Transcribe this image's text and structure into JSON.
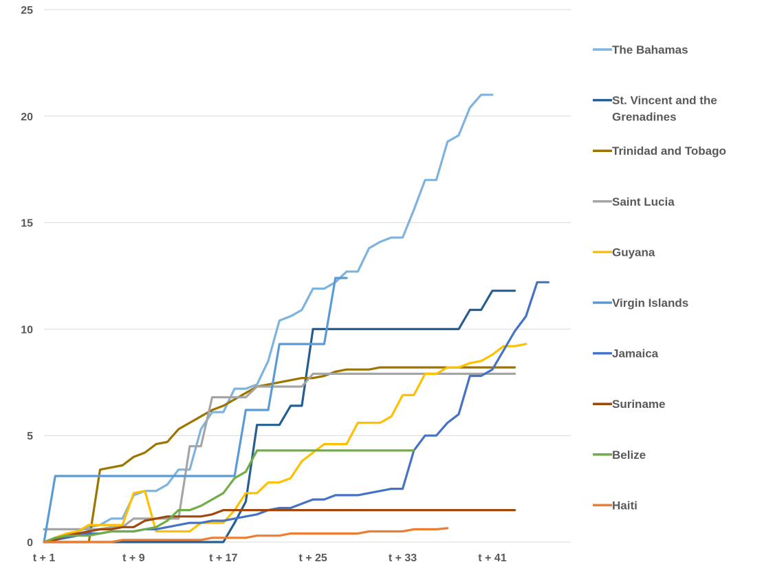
{
  "chart_data": {
    "type": "line",
    "title": "",
    "xlabel": "",
    "ylabel": "",
    "ylim": [
      0,
      25
    ],
    "xlim": [
      1,
      48
    ],
    "y_ticks": [
      "0",
      "5",
      "10",
      "15",
      "20",
      "25"
    ],
    "x_ticks": [
      {
        "x": 1,
        "label": "t + 1"
      },
      {
        "x": 9,
        "label": "t + 9"
      },
      {
        "x": 17,
        "label": "t + 17"
      },
      {
        "x": 25,
        "label": "t + 25"
      },
      {
        "x": 33,
        "label": "t + 33"
      },
      {
        "x": 41,
        "label": "t + 41"
      }
    ],
    "grid": "horizontal",
    "legend_position": "right",
    "series": [
      {
        "name": "The Bahamas",
        "color": "#7EB3DF",
        "x": [
          1,
          2,
          3,
          4,
          5,
          6,
          7,
          8,
          9,
          10,
          11,
          12,
          13,
          14,
          15,
          16,
          17,
          18,
          19,
          20,
          21,
          22,
          23,
          24,
          25,
          26,
          27,
          28,
          29,
          30,
          31,
          32,
          33,
          34,
          35,
          36,
          37,
          38,
          39,
          40,
          41
        ],
        "y": [
          0,
          0.1,
          0.3,
          0.5,
          0.7,
          0.8,
          1.1,
          1.1,
          2.2,
          2.4,
          2.4,
          2.7,
          3.4,
          3.4,
          5.3,
          6.1,
          6.1,
          7.2,
          7.2,
          7.4,
          8.5,
          10.4,
          10.6,
          10.9,
          11.9,
          11.9,
          12.2,
          12.7,
          12.7,
          13.8,
          14.1,
          14.3,
          14.3,
          15.6,
          17.0,
          17.0,
          18.8,
          19.1,
          20.4,
          21.0,
          21.0
        ]
      },
      {
        "name": "St. Vincent and the Grenadines",
        "color": "#255E91",
        "x": [
          1,
          5,
          11,
          16,
          17,
          18,
          19,
          20,
          21,
          22,
          23,
          24,
          25,
          26,
          27,
          28,
          29,
          30,
          31,
          32,
          33,
          34,
          35,
          36,
          37,
          38,
          39,
          40,
          41,
          42,
          43
        ],
        "y": [
          0,
          0,
          0,
          0,
          0,
          0.9,
          1.9,
          5.5,
          5.5,
          5.5,
          6.4,
          6.4,
          10,
          10,
          10,
          10,
          10,
          10,
          10,
          10,
          10,
          10,
          10,
          10,
          10,
          10,
          10.9,
          10.9,
          11.8,
          11.8,
          11.8
        ]
      },
      {
        "name": "Trinidad and Tobago",
        "color": "#9C7400",
        "x": [
          1,
          3,
          4,
          5,
          6,
          7,
          8,
          9,
          10,
          11,
          12,
          13,
          14,
          15,
          16,
          17,
          18,
          19,
          20,
          21,
          22,
          23,
          24,
          25,
          26,
          27,
          28,
          29,
          30,
          31,
          32,
          33,
          34,
          35,
          36,
          37,
          38,
          39,
          40,
          41,
          42,
          43
        ],
        "y": [
          0,
          0,
          0,
          0,
          3.4,
          3.5,
          3.6,
          4.0,
          4.2,
          4.6,
          4.7,
          5.3,
          5.6,
          5.9,
          6.2,
          6.4,
          6.7,
          7.0,
          7.3,
          7.4,
          7.5,
          7.6,
          7.7,
          7.7,
          7.8,
          8.0,
          8.1,
          8.1,
          8.1,
          8.2,
          8.2,
          8.2,
          8.2,
          8.2,
          8.2,
          8.2,
          8.2,
          8.2,
          8.2,
          8.2,
          8.2,
          8.2
        ]
      },
      {
        "name": "Saint Lucia",
        "color": "#A5A5A5",
        "x": [
          1,
          4,
          5,
          6,
          7,
          8,
          9,
          10,
          11,
          12,
          13,
          14,
          15,
          16,
          17,
          18,
          19,
          20,
          21,
          22,
          23,
          24,
          25,
          26,
          27,
          28,
          29,
          30,
          31,
          32,
          33,
          34,
          35,
          36,
          37,
          38,
          39,
          40,
          41,
          42,
          43
        ],
        "y": [
          0.6,
          0.6,
          0.6,
          0.6,
          0.7,
          0.7,
          1.1,
          1.1,
          1.1,
          1.1,
          1.1,
          4.5,
          4.5,
          6.8,
          6.8,
          6.8,
          6.8,
          7.3,
          7.3,
          7.3,
          7.3,
          7.3,
          7.9,
          7.9,
          7.9,
          7.9,
          7.9,
          7.9,
          7.9,
          7.9,
          7.9,
          7.9,
          7.9,
          7.9,
          7.9,
          7.9,
          7.9,
          7.9,
          7.9,
          7.9,
          7.9
        ]
      },
      {
        "name": "Guyana",
        "color": "#FFC000",
        "x": [
          1,
          2,
          3,
          4,
          5,
          6,
          7,
          8,
          9,
          10,
          11,
          12,
          13,
          14,
          15,
          16,
          17,
          18,
          19,
          20,
          21,
          22,
          23,
          24,
          25,
          26,
          27,
          28,
          29,
          30,
          31,
          32,
          33,
          34,
          35,
          36,
          37,
          38,
          39,
          40,
          41,
          42,
          43,
          44
        ],
        "y": [
          0,
          0.2,
          0.4,
          0.5,
          0.8,
          0.8,
          0.8,
          0.8,
          2.3,
          2.4,
          0.5,
          0.5,
          0.5,
          0.5,
          0.9,
          0.9,
          0.9,
          1.5,
          2.3,
          2.3,
          2.8,
          2.8,
          3.0,
          3.8,
          4.2,
          4.6,
          4.6,
          4.6,
          5.6,
          5.6,
          5.6,
          5.9,
          6.9,
          6.9,
          7.9,
          7.9,
          8.2,
          8.2,
          8.4,
          8.5,
          8.8,
          9.2,
          9.2,
          9.3
        ]
      },
      {
        "name": "Virgin Islands",
        "color": "#5B9BD5",
        "x": [
          1,
          2,
          3,
          4,
          5,
          6,
          7,
          8,
          9,
          10,
          11,
          12,
          13,
          14,
          15,
          16,
          17,
          18,
          19,
          20,
          21,
          22,
          23,
          24,
          25,
          26,
          27,
          28
        ],
        "y": [
          0,
          3.1,
          3.1,
          3.1,
          3.1,
          3.1,
          3.1,
          3.1,
          3.1,
          3.1,
          3.1,
          3.1,
          3.1,
          3.1,
          3.1,
          3.1,
          3.1,
          3.1,
          6.2,
          6.2,
          6.2,
          9.3,
          9.3,
          9.3,
          9.3,
          9.3,
          12.4,
          12.4
        ]
      },
      {
        "name": "Jamaica",
        "color": "#4472C4",
        "x": [
          1,
          2,
          3,
          4,
          5,
          6,
          7,
          8,
          9,
          10,
          11,
          12,
          13,
          14,
          15,
          16,
          17,
          18,
          19,
          20,
          21,
          22,
          23,
          24,
          25,
          26,
          27,
          28,
          29,
          30,
          31,
          32,
          33,
          34,
          35,
          36,
          37,
          38,
          39,
          40,
          41,
          42,
          43,
          44,
          45,
          46
        ],
        "y": [
          0,
          0.1,
          0.2,
          0.3,
          0.4,
          0.4,
          0.5,
          0.5,
          0.5,
          0.6,
          0.6,
          0.7,
          0.8,
          0.9,
          0.9,
          1.0,
          1.0,
          1.1,
          1.2,
          1.3,
          1.5,
          1.6,
          1.6,
          1.8,
          2.0,
          2.0,
          2.2,
          2.2,
          2.2,
          2.3,
          2.4,
          2.5,
          2.5,
          4.3,
          5.0,
          5.0,
          5.6,
          6.0,
          7.8,
          7.8,
          8.1,
          9.0,
          9.9,
          10.6,
          12.2,
          12.2
        ]
      },
      {
        "name": "Suriname",
        "color": "#9E480E",
        "x": [
          1,
          2,
          3,
          4,
          5,
          6,
          7,
          8,
          9,
          10,
          11,
          12,
          13,
          14,
          15,
          16,
          17,
          18,
          19,
          20,
          21,
          22,
          23,
          24,
          25,
          26,
          27,
          28,
          29,
          30,
          31,
          32,
          33,
          34,
          35,
          36,
          37,
          38,
          39,
          40,
          41,
          42,
          43
        ],
        "y": [
          0,
          0.1,
          0.3,
          0.4,
          0.5,
          0.6,
          0.6,
          0.7,
          0.7,
          1.0,
          1.1,
          1.2,
          1.2,
          1.2,
          1.2,
          1.3,
          1.5,
          1.5,
          1.5,
          1.5,
          1.5,
          1.5,
          1.5,
          1.5,
          1.5,
          1.5,
          1.5,
          1.5,
          1.5,
          1.5,
          1.5,
          1.5,
          1.5,
          1.5,
          1.5,
          1.5,
          1.5,
          1.5,
          1.5,
          1.5,
          1.5,
          1.5,
          1.5
        ]
      },
      {
        "name": "Belize",
        "color": "#70AD47",
        "x": [
          1,
          2,
          3,
          4,
          5,
          6,
          7,
          8,
          9,
          10,
          11,
          12,
          13,
          14,
          15,
          16,
          17,
          18,
          19,
          20,
          21,
          22,
          23,
          24,
          25,
          26,
          27,
          28,
          29,
          30,
          31,
          32,
          33,
          34
        ],
        "y": [
          0,
          0.2,
          0.3,
          0.3,
          0.3,
          0.4,
          0.5,
          0.5,
          0.5,
          0.6,
          0.7,
          1.0,
          1.5,
          1.5,
          1.7,
          2.0,
          2.3,
          3.0,
          3.3,
          4.3,
          4.3,
          4.3,
          4.3,
          4.3,
          4.3,
          4.3,
          4.3,
          4.3,
          4.3,
          4.3,
          4.3,
          4.3,
          4.3,
          4.3
        ]
      },
      {
        "name": "Haiti",
        "color": "#ED7D31",
        "x": [
          1,
          2,
          3,
          4,
          5,
          6,
          7,
          8,
          9,
          10,
          11,
          12,
          13,
          14,
          15,
          16,
          17,
          18,
          19,
          20,
          21,
          22,
          23,
          24,
          25,
          26,
          27,
          28,
          29,
          30,
          31,
          32,
          33,
          34,
          35,
          36,
          37
        ],
        "y": [
          0,
          0,
          0,
          0,
          0,
          0,
          0,
          0.1,
          0.1,
          0.1,
          0.1,
          0.1,
          0.1,
          0.1,
          0.1,
          0.2,
          0.2,
          0.2,
          0.2,
          0.3,
          0.3,
          0.3,
          0.4,
          0.4,
          0.4,
          0.4,
          0.4,
          0.4,
          0.4,
          0.5,
          0.5,
          0.5,
          0.5,
          0.6,
          0.6,
          0.6,
          0.65
        ]
      }
    ]
  }
}
